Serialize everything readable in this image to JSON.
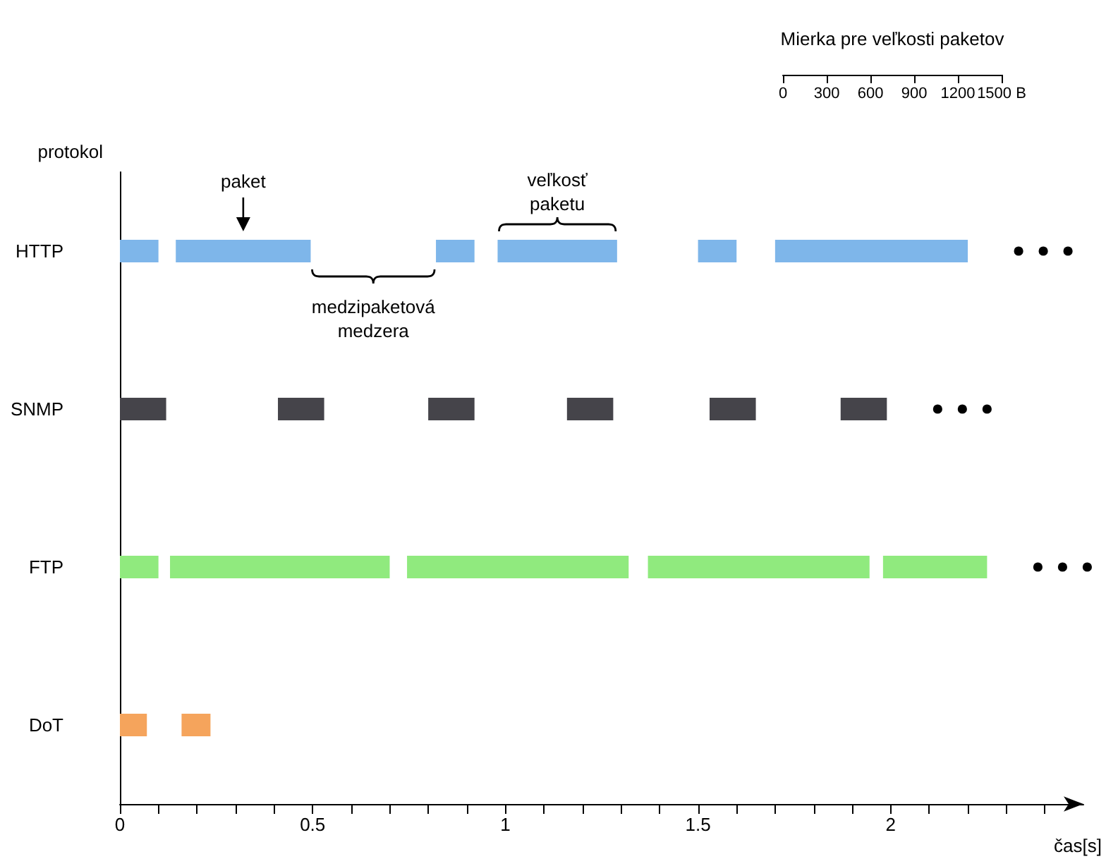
{
  "chart_data": {
    "type": "bar",
    "orientation": "horizontal",
    "xlabel": "čas[s]",
    "ylabel": "protokol",
    "categories": [
      "HTTP",
      "SNMP",
      "FTP",
      "DoT"
    ],
    "xlim": [
      0,
      2.5
    ],
    "xticks": [
      0,
      {
        "value": 0.1,
        "label": null
      },
      {
        "value": 0.2,
        "label": null
      },
      {
        "value": 0.3,
        "label": null
      },
      {
        "value": 0.4,
        "label": null
      },
      0.5,
      {
        "value": 0.6,
        "label": null
      },
      {
        "value": 0.7,
        "label": null
      },
      {
        "value": 0.8,
        "label": null
      },
      {
        "value": 0.9,
        "label": null
      },
      1,
      {
        "value": 1.1,
        "label": null
      },
      {
        "value": 1.2,
        "label": null
      },
      {
        "value": 1.3,
        "label": null
      },
      {
        "value": 1.4,
        "label": null
      },
      1.5,
      {
        "value": 1.6,
        "label": null
      },
      {
        "value": 1.7,
        "label": null
      },
      {
        "value": 1.8,
        "label": null
      },
      {
        "value": 1.9,
        "label": null
      },
      2,
      {
        "value": 2.1,
        "label": null
      },
      {
        "value": 2.2,
        "label": null
      },
      {
        "value": 2.3,
        "label": null
      },
      {
        "value": 2.4,
        "label": null
      }
    ],
    "x2label": "Mierka pre veľkosti paketov",
    "x2lim": [
      0,
      1500
    ],
    "x2ticks": [
      0,
      300,
      600,
      900,
      1200,
      {
        "value": 1500,
        "label": "1500 B"
      }
    ],
    "series": [
      {
        "colors": [
          "#7eb6ea",
          "#45444a",
          "#90ea7e",
          "#f5a45c"
        ],
        "base": [
          0,
          0,
          0,
          0
        ],
        "values": [
          0.1,
          0.12,
          0.1,
          0.07
        ]
      },
      {
        "colors": [
          "#7eb6ea",
          "#45444a",
          "#90ea7e",
          "#f5a45c"
        ],
        "base": [
          0.145,
          0.41,
          0.13,
          0.16
        ],
        "values": [
          0.35,
          0.12,
          0.57,
          0.075
        ]
      },
      {
        "colors": [
          "#7eb6ea",
          "#45444a",
          "#90ea7e",
          null
        ],
        "base": [
          0.82,
          0.8,
          0.745,
          null
        ],
        "values": [
          0.1,
          0.12,
          0.575,
          null
        ]
      },
      {
        "colors": [
          "#7eb6ea",
          "#45444a",
          "#90ea7e",
          null
        ],
        "base": [
          0.98,
          1.16,
          1.37,
          null
        ],
        "values": [
          0.31,
          0.12,
          0.575,
          null
        ]
      },
      {
        "colors": [
          "#7eb6ea",
          "#45444a",
          "#90ea7e",
          null
        ],
        "base": [
          1.5,
          1.53,
          1.98,
          null
        ],
        "values": [
          0.1,
          0.12,
          0.27,
          null
        ]
      },
      {
        "colors": [
          "#7eb6ea",
          "#45444a",
          null,
          null
        ],
        "base": [
          1.7,
          1.87,
          null,
          null
        ],
        "values": [
          0.5,
          0.12,
          null,
          null
        ]
      }
    ],
    "annotations": [
      "paket",
      "veľkosť paketu",
      "medzipaketová medzera"
    ],
    "grid": false
  }
}
